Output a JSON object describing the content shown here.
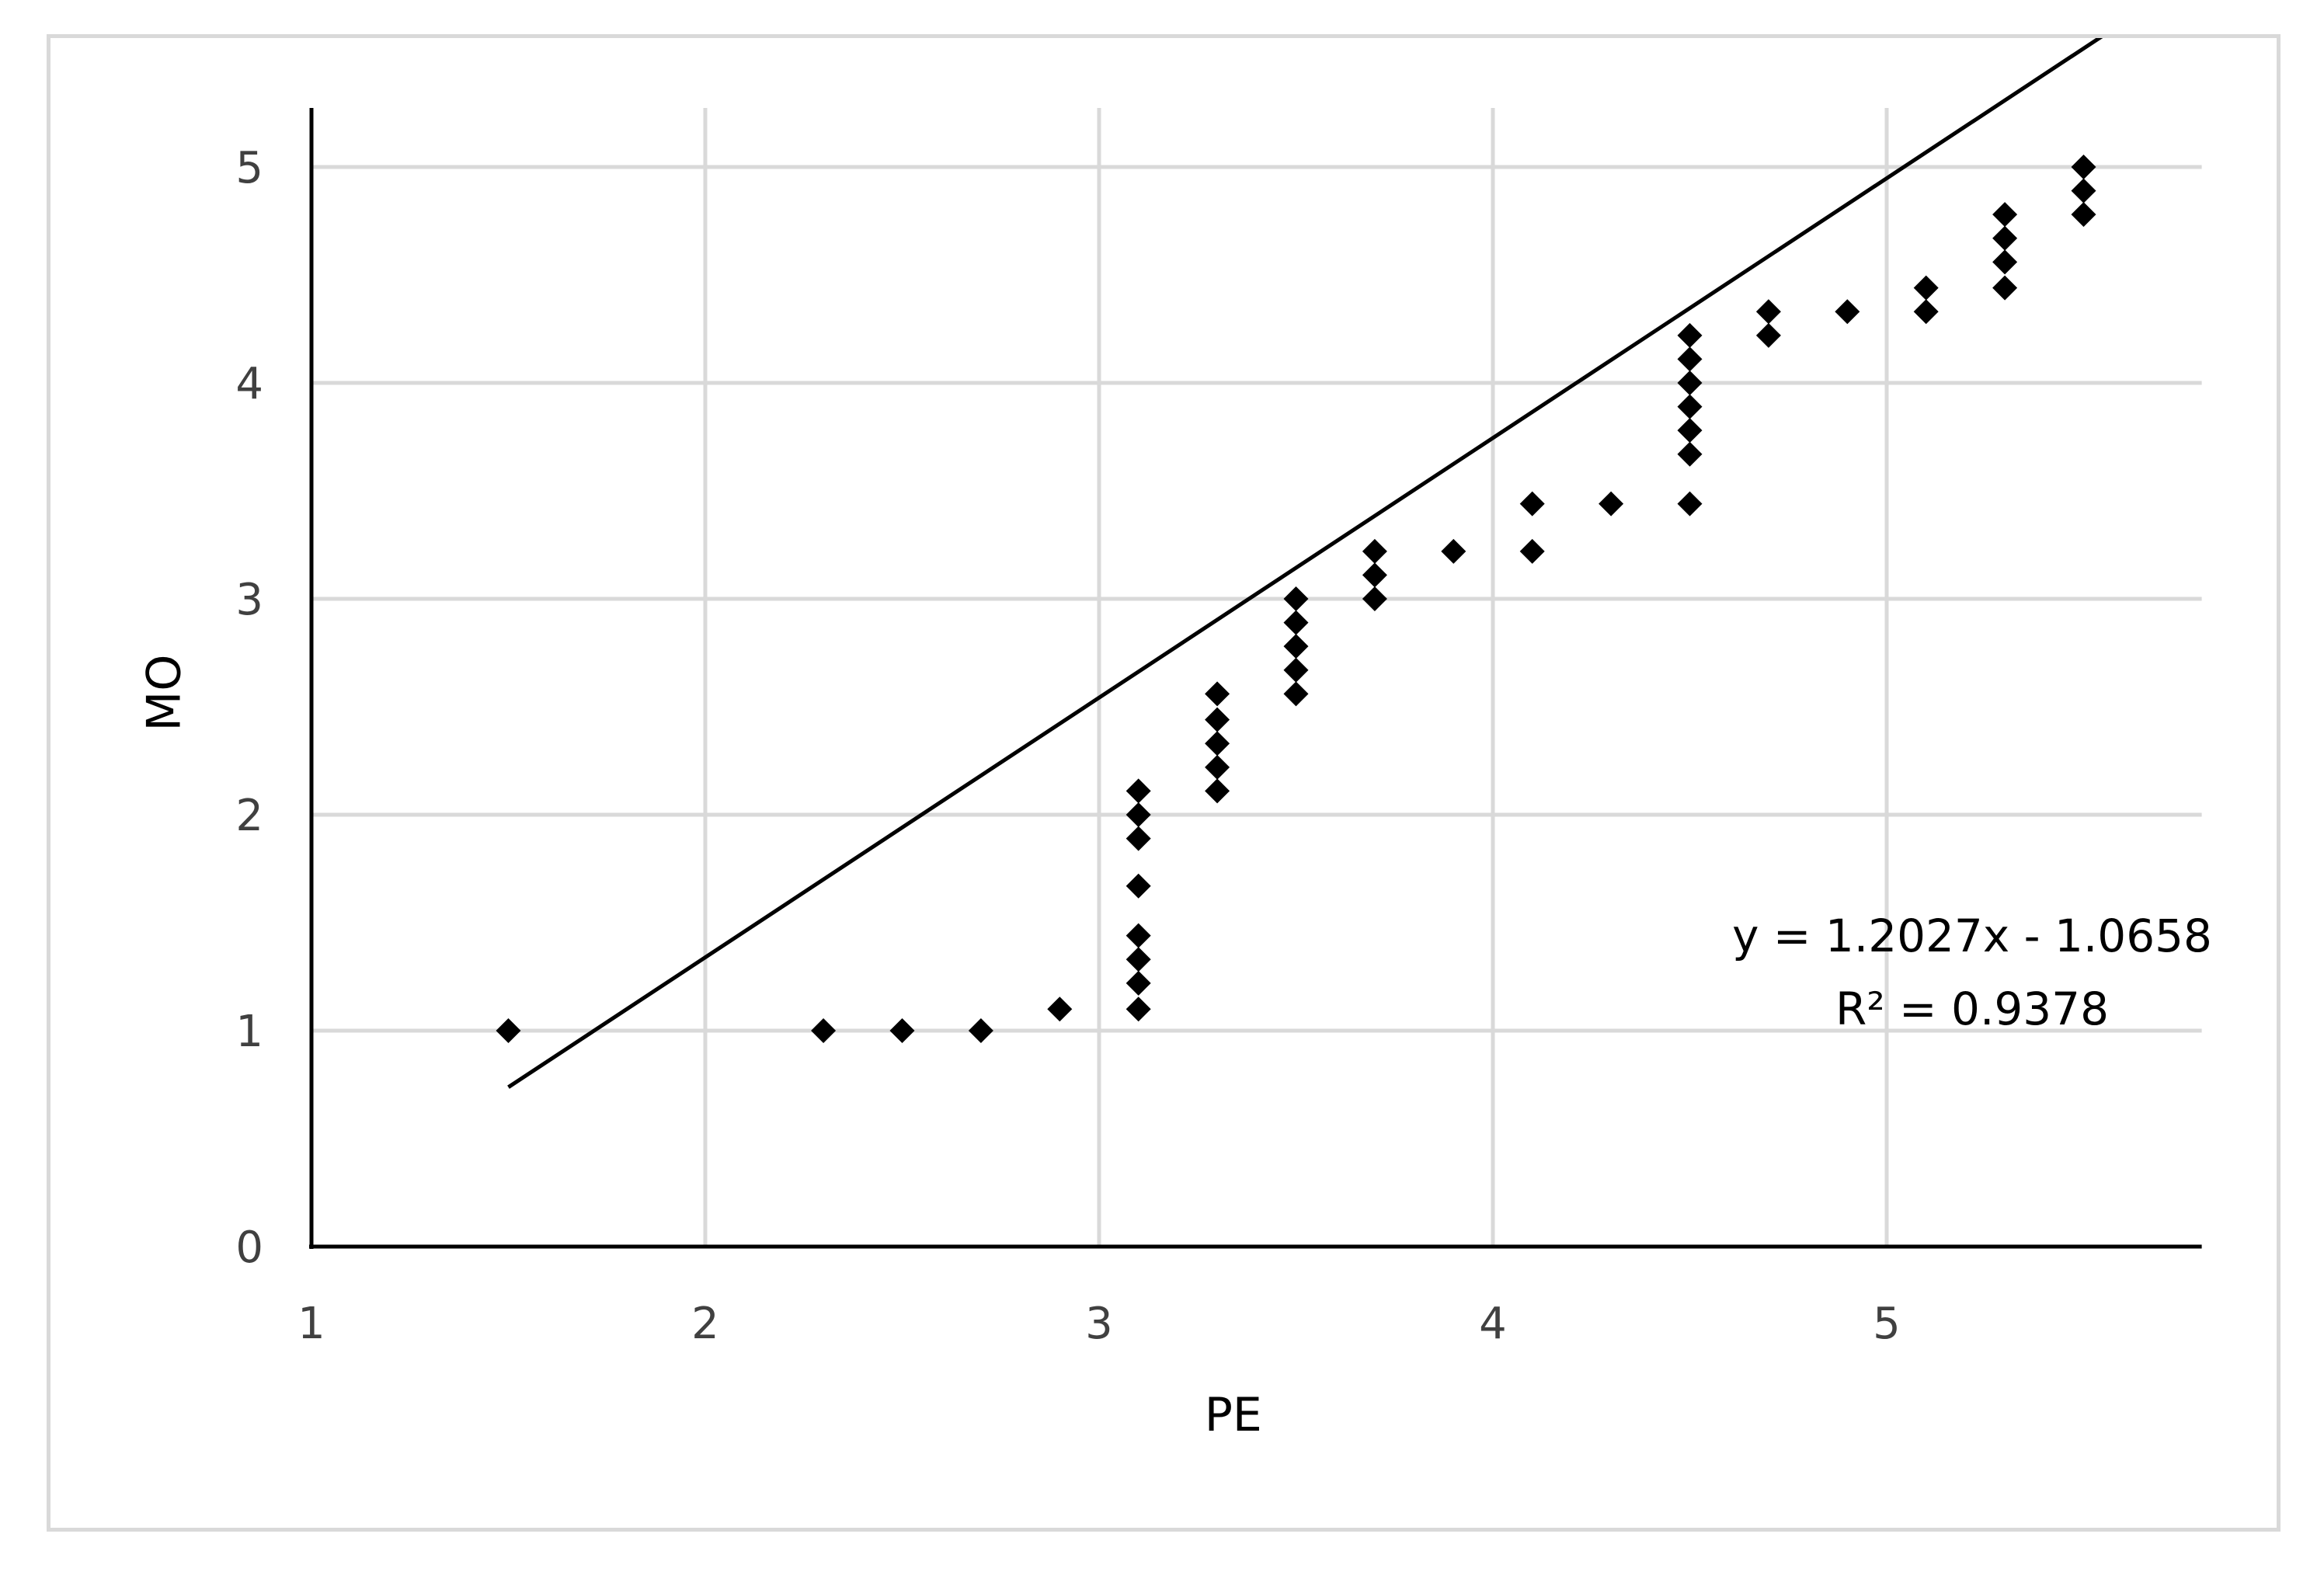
{
  "chart_data": {
    "type": "scatter",
    "title": "",
    "xlabel": "PE",
    "ylabel": "MO",
    "xlim": [
      1,
      5.8
    ],
    "ylim": [
      0,
      5.3
    ],
    "xticks": [
      1,
      2,
      3,
      4,
      5
    ],
    "yticks": [
      0,
      1,
      2,
      3,
      4,
      5
    ],
    "grid": true,
    "legend": "none",
    "marker": "diamond",
    "marker_color": "#000000",
    "points": [
      [
        1.5,
        1.0
      ],
      [
        2.3,
        1.0
      ],
      [
        2.5,
        1.0
      ],
      [
        2.7,
        1.0
      ],
      [
        2.9,
        1.1
      ],
      [
        3.1,
        1.1
      ],
      [
        3.1,
        1.22
      ],
      [
        3.1,
        1.33
      ],
      [
        3.1,
        1.44
      ],
      [
        3.1,
        1.67
      ],
      [
        3.1,
        1.89
      ],
      [
        3.1,
        2.0
      ],
      [
        3.1,
        2.11
      ],
      [
        3.3,
        2.11
      ],
      [
        3.3,
        2.22
      ],
      [
        3.3,
        2.33
      ],
      [
        3.3,
        2.44
      ],
      [
        3.3,
        2.56
      ],
      [
        3.5,
        2.56
      ],
      [
        3.5,
        2.67
      ],
      [
        3.5,
        2.78
      ],
      [
        3.5,
        2.89
      ],
      [
        3.5,
        3.0
      ],
      [
        3.7,
        3.0
      ],
      [
        3.7,
        3.11
      ],
      [
        3.7,
        3.22
      ],
      [
        3.9,
        3.22
      ],
      [
        4.1,
        3.22
      ],
      [
        4.1,
        3.44
      ],
      [
        4.3,
        3.44
      ],
      [
        4.5,
        3.44
      ],
      [
        4.5,
        3.67
      ],
      [
        4.5,
        3.78
      ],
      [
        4.5,
        3.89
      ],
      [
        4.5,
        4.0
      ],
      [
        4.5,
        4.11
      ],
      [
        4.5,
        4.22
      ],
      [
        4.7,
        4.22
      ],
      [
        4.7,
        4.33
      ],
      [
        4.9,
        4.33
      ],
      [
        5.1,
        4.33
      ],
      [
        5.1,
        4.44
      ],
      [
        5.3,
        4.44
      ],
      [
        5.3,
        4.56
      ],
      [
        5.3,
        4.67
      ],
      [
        5.3,
        4.78
      ],
      [
        5.5,
        4.78
      ],
      [
        5.5,
        4.89
      ],
      [
        5.5,
        5.0
      ]
    ],
    "trendline": {
      "type": "linear",
      "slope": 1.2027,
      "intercept": -1.0658,
      "x_range": [
        1.5,
        5.7
      ],
      "equation": "y = 1.2027x - 1.0658",
      "r_squared": "R² = 0.9378"
    }
  }
}
